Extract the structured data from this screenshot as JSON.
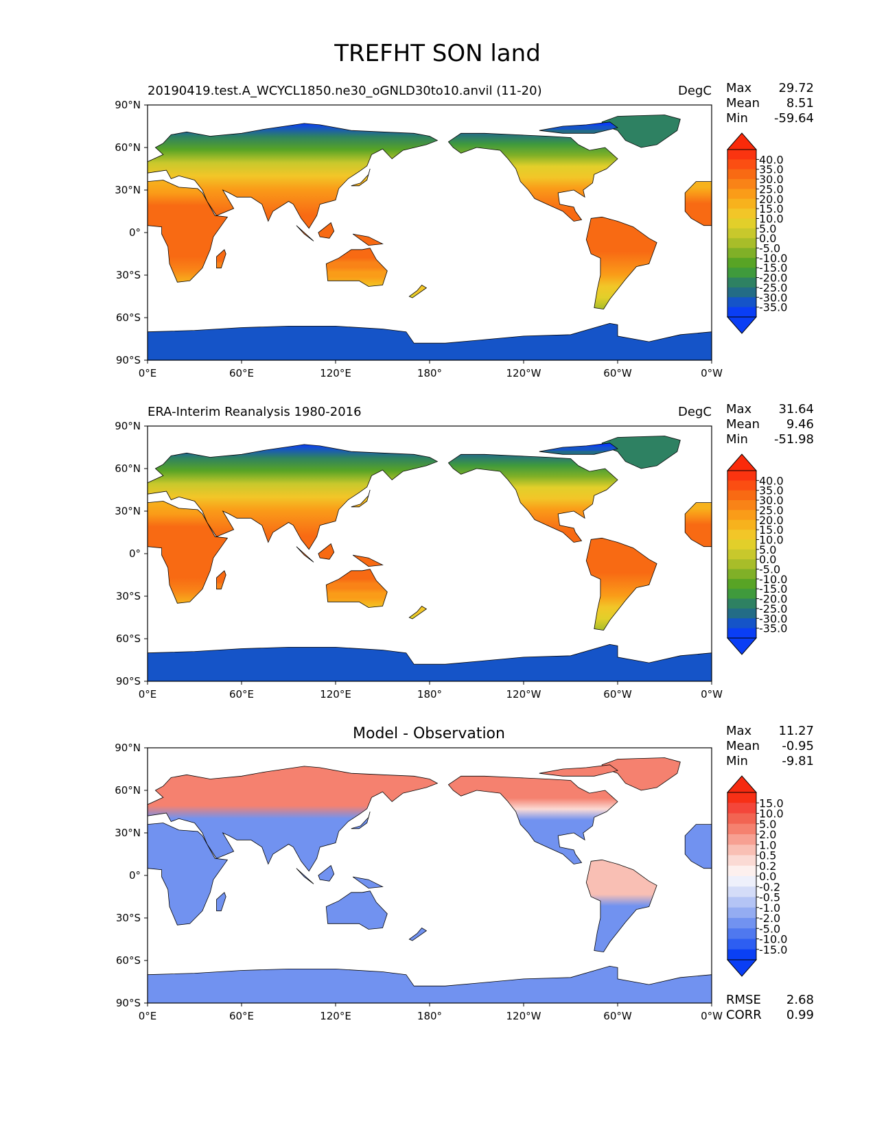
{
  "suptitle": "TREFHT SON land",
  "axis": {
    "lon_ticks": [
      "0°E",
      "60°E",
      "120°E",
      "180°",
      "120°W",
      "60°W",
      "0°W"
    ],
    "lat_ticks": [
      "90°N",
      "60°N",
      "30°N",
      "0°",
      "30°S",
      "60°S",
      "90°S"
    ]
  },
  "panels": [
    {
      "title_left": "20190419.test.A_WCYCL1850.ne30_oGNLD30to10.anvil (11-20)",
      "title_right": "DegC",
      "title_center": "",
      "stats": [
        {
          "label": "Max",
          "value": "29.72"
        },
        {
          "label": "Mean",
          "value": "8.51"
        },
        {
          "label": "Min",
          "value": "-59.64"
        }
      ],
      "colorbar": {
        "labels": [
          "40.0",
          "35.0",
          "30.0",
          "25.0",
          "20.0",
          "15.0",
          "10.0",
          "5.0",
          "0.0",
          "-5.0",
          "-10.0",
          "-15.0",
          "-20.0",
          "-25.0",
          "-30.0",
          "-35.0"
        ],
        "colors": [
          "#fa3410",
          "#fb4e12",
          "#f86a13",
          "#f98317",
          "#fa9c18",
          "#f7b21d",
          "#f2c628",
          "#e2cf2a",
          "#c8c82c",
          "#a8bd29",
          "#80b027",
          "#58a425",
          "#3f9a3c",
          "#2e8162",
          "#236c86",
          "#1554c8",
          "#0a3ef5"
        ],
        "over_color": "#fa2a0a",
        "under_color": "#0a3ef5"
      },
      "footer": []
    },
    {
      "title_left": "ERA-Interim Reanalysis 1980-2016",
      "title_right": "DegC",
      "title_center": "",
      "stats": [
        {
          "label": "Max",
          "value": "31.64"
        },
        {
          "label": "Mean",
          "value": "9.46"
        },
        {
          "label": "Min",
          "value": "-51.98"
        }
      ],
      "colorbar": {
        "labels": [
          "40.0",
          "35.0",
          "30.0",
          "25.0",
          "20.0",
          "15.0",
          "10.0",
          "5.0",
          "0.0",
          "-5.0",
          "-10.0",
          "-15.0",
          "-20.0",
          "-25.0",
          "-30.0",
          "-35.0"
        ],
        "colors": [
          "#fa3410",
          "#fb4e12",
          "#f86a13",
          "#f98317",
          "#fa9c18",
          "#f7b21d",
          "#f2c628",
          "#e2cf2a",
          "#c8c82c",
          "#a8bd29",
          "#80b027",
          "#58a425",
          "#3f9a3c",
          "#2e8162",
          "#236c86",
          "#1554c8",
          "#0a3ef5"
        ],
        "over_color": "#fa2a0a",
        "under_color": "#0a3ef5"
      },
      "footer": []
    },
    {
      "title_left": "",
      "title_right": "",
      "title_center": "Model - Observation",
      "stats": [
        {
          "label": "Max",
          "value": "11.27"
        },
        {
          "label": "Mean",
          "value": "-0.95"
        },
        {
          "label": "Min",
          "value": "-9.81"
        }
      ],
      "colorbar": {
        "labels": [
          "15.0",
          "10.0",
          "5.0",
          "2.0",
          "1.0",
          "0.5",
          "0.2",
          "0.0",
          "-0.2",
          "-0.5",
          "-1.0",
          "-2.0",
          "-5.0",
          "-10.0",
          "-15.0"
        ],
        "colors": [
          "#f73016",
          "#f4463a",
          "#f26452",
          "#f5816f",
          "#f7a092",
          "#f9bfb4",
          "#fbdad4",
          "#fdf0ee",
          "#eef0fb",
          "#d4dcf8",
          "#b4c4f5",
          "#94acf2",
          "#7192f0",
          "#4f78ef",
          "#2d5ef2",
          "#0a40f5"
        ],
        "over_color": "#f62a10",
        "under_color": "#0a3ef5"
      },
      "footer": [
        {
          "label": "RMSE",
          "value": "2.68"
        },
        {
          "label": "CORR",
          "value": "0.99"
        }
      ]
    }
  ],
  "legend_colors": {
    "ocean": "#ffffff",
    "coastline": "#000000"
  }
}
